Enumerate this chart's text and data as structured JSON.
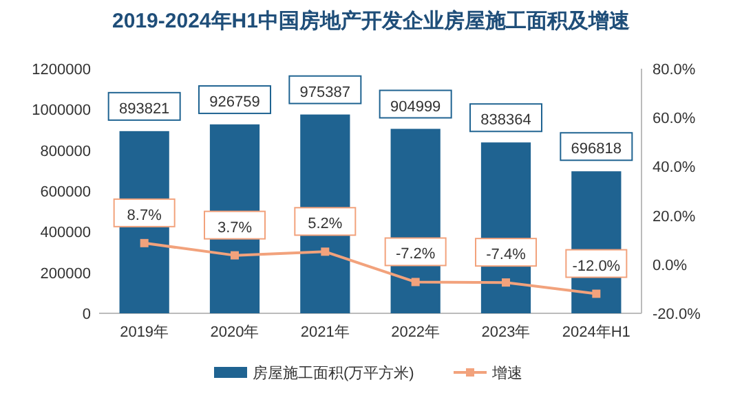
{
  "chart_data": {
    "type": "bar",
    "title": "2019-2024年H1中国房地产开发企业房屋施工面积及增速",
    "categories": [
      "2019年",
      "2020年",
      "2021年",
      "2022年",
      "2023年",
      "2024年H1"
    ],
    "series": [
      {
        "name": "房屋施工面积(万平方米)",
        "color": "#1f6391",
        "values": [
          893821,
          926759,
          975387,
          904999,
          838364,
          696818
        ],
        "value_labels": [
          "893821",
          "926759",
          "975387",
          "904999",
          "838364",
          "696818"
        ]
      },
      {
        "name": "增速",
        "type": "line",
        "axis": "y2",
        "color": "#f2a27c",
        "marker": "square",
        "values": [
          8.7,
          3.7,
          5.2,
          -7.2,
          -7.4,
          -12.0
        ],
        "value_labels": [
          "8.7%",
          "3.7%",
          "5.2%",
          "-7.2%",
          "-7.4%",
          "-12.0%"
        ]
      }
    ],
    "ylim": [
      0,
      1200000
    ],
    "yticks": [
      0,
      200000,
      400000,
      600000,
      800000,
      1000000,
      1200000
    ],
    "y2lim": [
      -20,
      80
    ],
    "y2ticks": [
      {
        "value": -20,
        "label": "-20.0%"
      },
      {
        "value": 0,
        "label": "0.0%"
      },
      {
        "value": 20,
        "label": "20.0%"
      },
      {
        "value": 40,
        "label": "40.0%"
      },
      {
        "value": 60,
        "label": "60.0%"
      },
      {
        "value": 80,
        "label": "80.0%"
      }
    ],
    "legend": "bottom"
  }
}
